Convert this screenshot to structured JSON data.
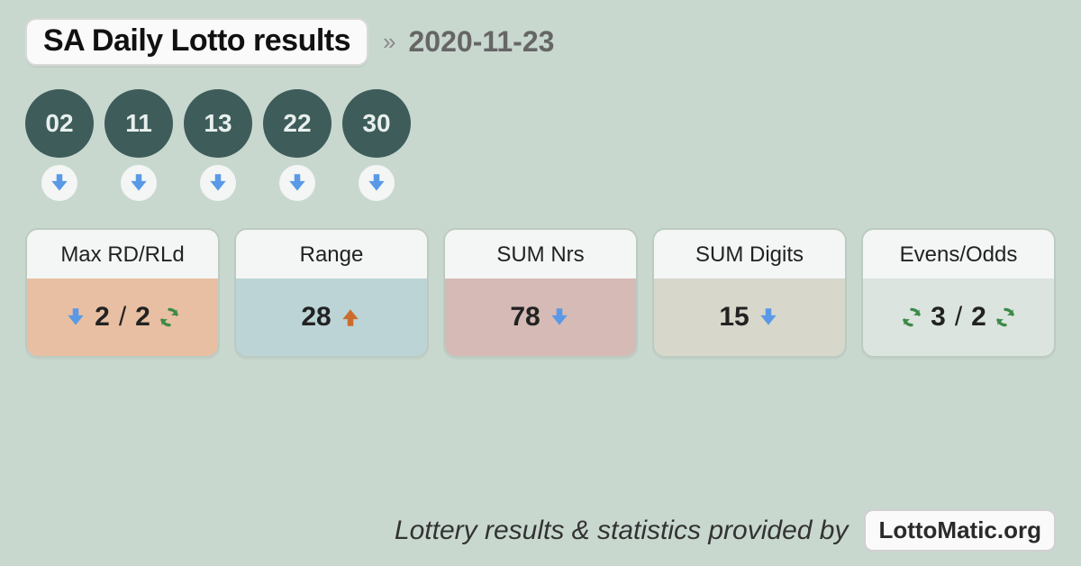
{
  "colors": {
    "page_bg": "#c8d8cf",
    "pill_bg": "#fafafa",
    "pill_border": "#d9d9d9",
    "title_color": "#111111",
    "chevron_color": "#8a8a8a",
    "date_color": "#666666",
    "ball_bg": "#3d5c5a",
    "ball_text": "#e8efec",
    "mini_circle_bg": "#f3f6f4",
    "arrow_down_blue": "#5a99e6",
    "arrow_up_orange": "#cc6b2e",
    "refresh_green": "#3c8a47",
    "stat_head_bg": "#f3f6f4",
    "stat_text": "#222222",
    "card_border": "rgba(0,0,0,0.06)",
    "footer_text": "#333333"
  },
  "header": {
    "title": "SA Daily Lotto results",
    "date": "2020-11-23"
  },
  "balls": [
    {
      "number": "02",
      "trend": "down"
    },
    {
      "number": "11",
      "trend": "down"
    },
    {
      "number": "13",
      "trend": "down"
    },
    {
      "number": "22",
      "trend": "down"
    },
    {
      "number": "30",
      "trend": "down"
    }
  ],
  "stats": [
    {
      "label": "Max RD/RLd",
      "body_bg": "#e8bfa2",
      "parts": [
        {
          "type": "icon",
          "icon": "down",
          "color": "#5a99e6"
        },
        {
          "type": "text",
          "text": "2"
        },
        {
          "type": "sep",
          "text": "/"
        },
        {
          "type": "text",
          "text": "2"
        },
        {
          "type": "icon",
          "icon": "refresh",
          "color": "#3c8a47"
        }
      ]
    },
    {
      "label": "Range",
      "body_bg": "#bcd4d6",
      "parts": [
        {
          "type": "text",
          "text": "28"
        },
        {
          "type": "icon",
          "icon": "up",
          "color": "#cc6b2e"
        }
      ]
    },
    {
      "label": "SUM Nrs",
      "body_bg": "#d5bab5",
      "parts": [
        {
          "type": "text",
          "text": "78"
        },
        {
          "type": "icon",
          "icon": "down",
          "color": "#5a99e6"
        }
      ]
    },
    {
      "label": "SUM Digits",
      "body_bg": "#d7d7cb",
      "parts": [
        {
          "type": "text",
          "text": "15"
        },
        {
          "type": "icon",
          "icon": "down",
          "color": "#5a99e6"
        }
      ]
    },
    {
      "label": "Evens/Odds",
      "body_bg": "#dbe4df",
      "parts": [
        {
          "type": "icon",
          "icon": "refresh",
          "color": "#3c8a47"
        },
        {
          "type": "text",
          "text": "3"
        },
        {
          "type": "sep",
          "text": "/"
        },
        {
          "type": "text",
          "text": "2"
        },
        {
          "type": "icon",
          "icon": "refresh",
          "color": "#3c8a47"
        }
      ]
    }
  ],
  "footer": {
    "text": "Lottery results & statistics provided by",
    "badge": "LottoMatic.org"
  }
}
